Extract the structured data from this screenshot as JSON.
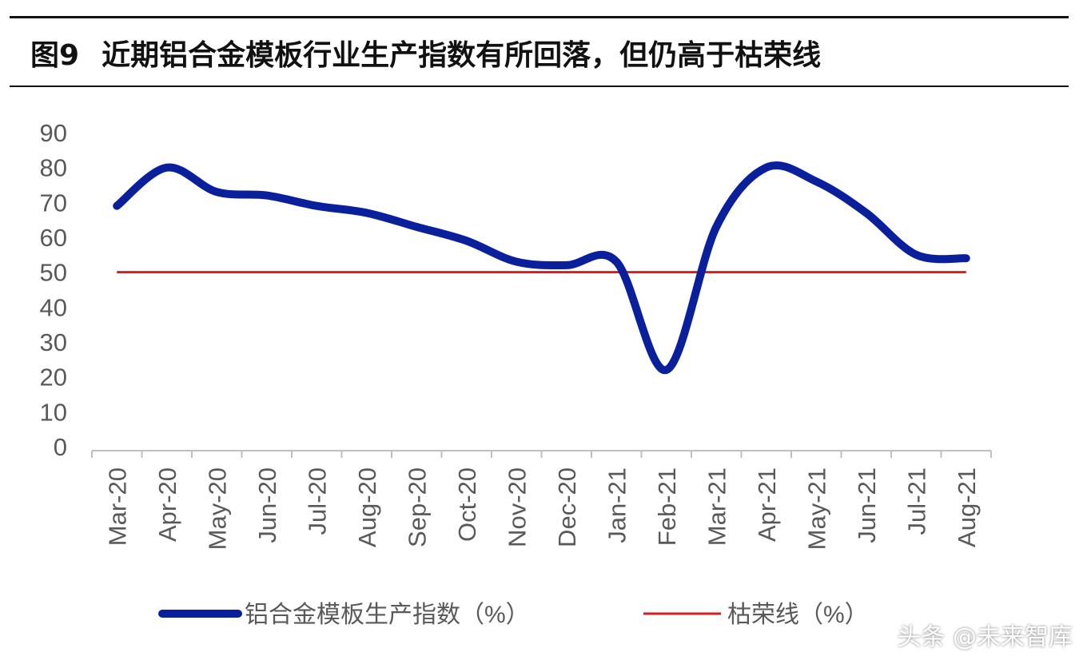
{
  "title": {
    "figure_label": "图9",
    "text": "近期铝合金模板行业生产指数有所回落，但仍高于枯荣线"
  },
  "watermark": "头条 @未来智库",
  "colors": {
    "index_line": "#0a1f9c",
    "threshold_line": "#d11f1f",
    "axis": "#bfbfbf",
    "text": "#595959"
  },
  "chart_data": {
    "type": "line",
    "categories": [
      "Mar-20",
      "Apr-20",
      "May-20",
      "Jun-20",
      "Jul-20",
      "Aug-20",
      "Sep-20",
      "Oct-20",
      "Nov-20",
      "Dec-20",
      "Jan-21",
      "Feb-21",
      "Mar-21",
      "Apr-21",
      "May-21",
      "Jun-21",
      "Jul-21",
      "Aug-21"
    ],
    "series": [
      {
        "name": "铝合金模板生产指数（%）",
        "values": [
          69,
          80,
          73,
          72,
          69,
          67,
          63,
          59,
          53,
          52,
          53,
          22,
          63,
          80,
          76,
          67,
          55,
          54
        ]
      },
      {
        "name": "枯荣线（%）",
        "values": [
          50,
          50,
          50,
          50,
          50,
          50,
          50,
          50,
          50,
          50,
          50,
          50,
          50,
          50,
          50,
          50,
          50,
          50
        ]
      }
    ],
    "yticks": [
      "0",
      "10",
      "20",
      "30",
      "40",
      "50",
      "60",
      "70",
      "80",
      "90"
    ],
    "ylim": [
      0,
      90
    ],
    "grid": false,
    "legend": "bottom",
    "xlabel": "",
    "ylabel": ""
  }
}
